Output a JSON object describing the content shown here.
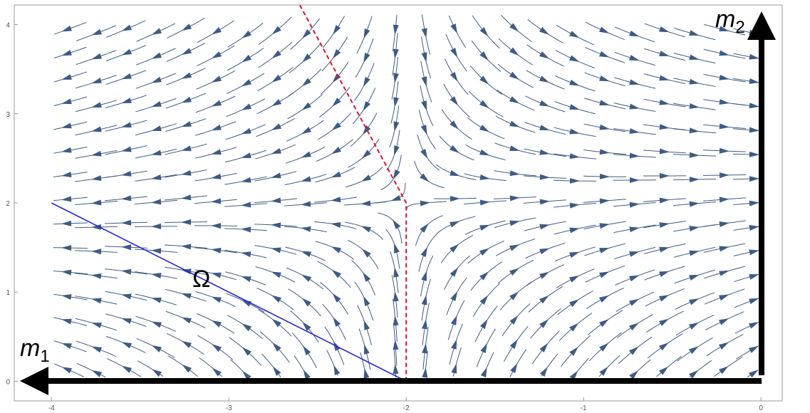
{
  "chart_data": {
    "type": "streamplot",
    "xlim": [
      -4.21,
      0.12
    ],
    "ylim": [
      -0.22,
      4.22
    ],
    "xticks": [
      -4,
      -3,
      -2,
      -1,
      0
    ],
    "yticks": [
      0,
      1,
      2,
      3,
      4
    ],
    "stream_color": "#3e5b84",
    "boundary": {
      "x": [
        -2,
        -2,
        -2.6
      ],
      "y": [
        0,
        2,
        4.22
      ],
      "color": "#e0102e"
    },
    "omega_line": {
      "x": [
        -4,
        -2
      ],
      "y": [
        2,
        0
      ],
      "color": "#2222dd",
      "label": "Ω"
    },
    "x_label": {
      "symbol": "m",
      "subscript": "1"
    },
    "y_label": {
      "symbol": "m",
      "subscript": "2"
    }
  }
}
